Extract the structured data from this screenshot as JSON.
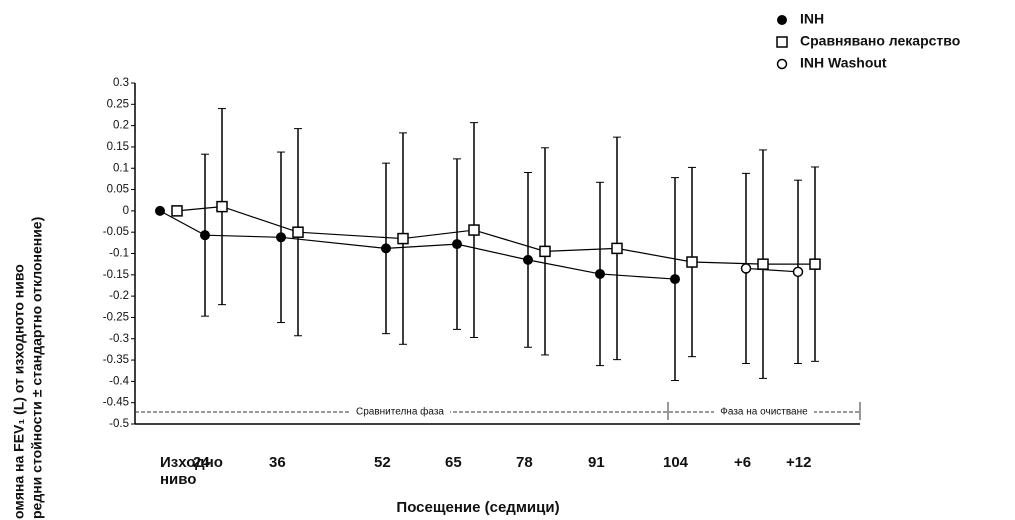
{
  "chart_data": {
    "type": "line",
    "y_label_lines": [
      "омяна на FEV₁ (L) от изходното ниво",
      "редни стойности ± стандартно отклонение)"
    ],
    "x_label": "Посещение (седмици)",
    "categories": [
      "Изходно ниво",
      "24",
      "36",
      "52",
      "65",
      "78",
      "91",
      "104",
      "+6",
      "+12"
    ],
    "phases": [
      "Сравнителна фаза",
      "Фаза на очистване"
    ],
    "series": [
      {
        "name": "INH",
        "marker": "filled-circle",
        "color": "#000000",
        "values": [
          0,
          -0.057,
          -0.062,
          -0.088,
          -0.078,
          -0.115,
          -0.148,
          -0.16,
          null,
          null
        ],
        "errors": [
          null,
          0.19,
          0.2,
          0.2,
          0.2,
          0.205,
          0.215,
          0.238,
          null,
          null
        ]
      },
      {
        "name": "Сравнявано лекарство",
        "marker": "open-square",
        "color": "#000000",
        "values": [
          0,
          0.01,
          -0.05,
          -0.065,
          -0.045,
          -0.095,
          -0.088,
          -0.12,
          -0.125,
          -0.125
        ],
        "errors": [
          null,
          0.23,
          0.243,
          0.248,
          0.252,
          0.243,
          0.261,
          0.222,
          0.268,
          0.228
        ]
      },
      {
        "name": "INH Washout",
        "marker": "open-circle",
        "color": "#000000",
        "values": [
          null,
          null,
          null,
          null,
          null,
          null,
          null,
          null,
          -0.135,
          -0.143
        ],
        "errors": [
          null,
          null,
          null,
          null,
          null,
          null,
          null,
          null,
          0.223,
          0.215
        ]
      }
    ],
    "ylim": [
      -0.5,
      0.3
    ],
    "yticks": [
      0.3,
      0.25,
      0.2,
      0.15,
      0.1,
      0.05,
      0,
      -0.05,
      -0.1,
      -0.15,
      -0.2,
      -0.25,
      -0.3,
      -0.35,
      -0.4,
      -0.45,
      -0.5
    ]
  }
}
